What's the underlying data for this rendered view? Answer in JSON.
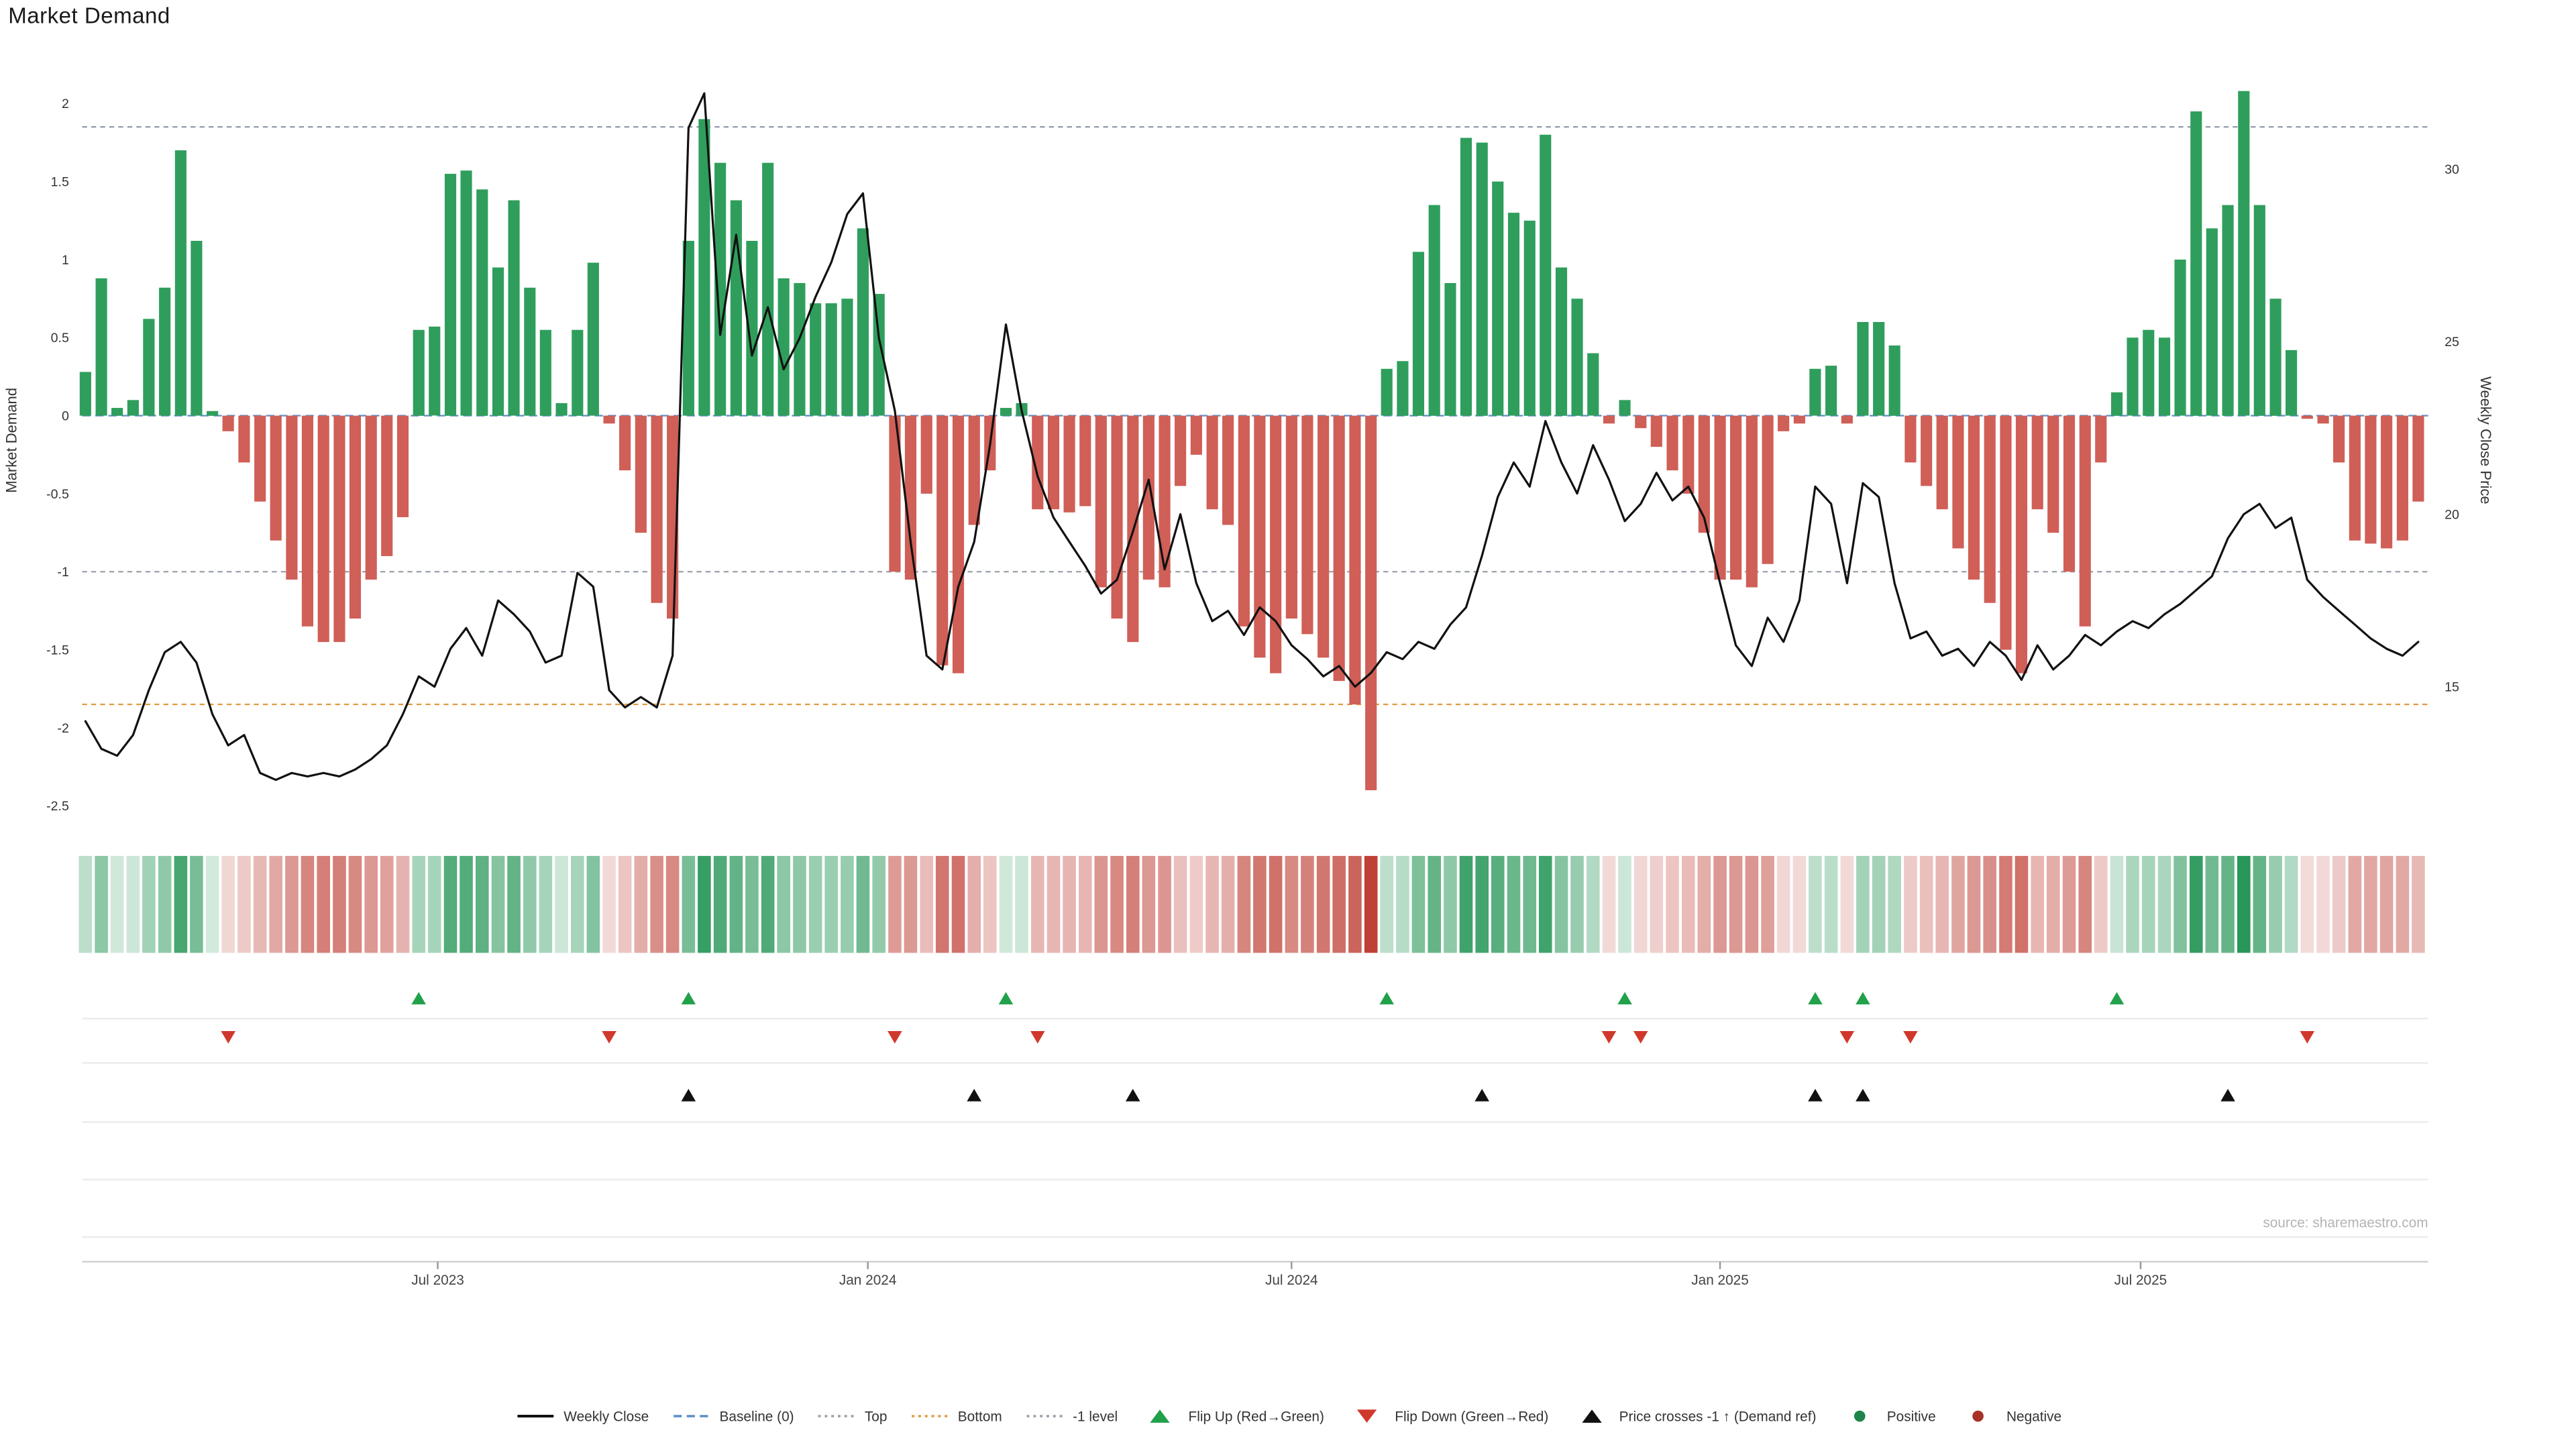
{
  "title": "Market Demand",
  "source": "source: sharemaestro.com",
  "axes": {
    "left_label": "Market Demand",
    "right_label": "Weekly Close Price",
    "left_ticks": [
      2,
      1.5,
      1,
      0.5,
      0,
      -0.5,
      -1,
      -1.5,
      -2,
      -2.5
    ],
    "right_ticks": [
      30,
      25,
      20,
      15
    ],
    "x_tick_labels": [
      "Jul 2023",
      "Jan 2024",
      "Jul 2024",
      "Jan 2025",
      "Jul 2025"
    ]
  },
  "colors": {
    "positive_bar": "#2f9e5c",
    "negative_bar": "#cf5f57",
    "heat_positive": "#0e8a44",
    "heat_negative": "#bf4036",
    "price_line": "#111111",
    "flip_up": "#22a14b",
    "flip_down": "#d1382c",
    "price_cross": "#111111",
    "positive_dot": "#1e8449",
    "negative_dot": "#a93226",
    "baseline": "#5b8fc9",
    "top_line": "#8b95a8",
    "bottom_line": "#e09a3e",
    "minus_one_line": "#9aa0a8"
  },
  "legend": [
    {
      "label": "Weekly Close",
      "symbol": "line",
      "color": "#111111"
    },
    {
      "label": "Baseline (0)",
      "symbol": "dash",
      "color": "#5b8fc9"
    },
    {
      "label": "Top",
      "symbol": "dots",
      "color": "#9aa0a8"
    },
    {
      "label": "Bottom",
      "symbol": "dots",
      "color": "#e09a3e"
    },
    {
      "label": "-1 level",
      "symbol": "dots",
      "color": "#9aa0a8"
    },
    {
      "label": "Flip Up (Red→Green)",
      "symbol": "triangle-up",
      "color": "#22a14b"
    },
    {
      "label": "Flip Down (Green→Red)",
      "symbol": "triangle-down",
      "color": "#d1382c"
    },
    {
      "label": "Price crosses -1 ↑ (Demand ref)",
      "symbol": "triangle-up",
      "color": "#111111"
    },
    {
      "label": "Positive",
      "symbol": "dot",
      "color": "#1e8449"
    },
    {
      "label": "Negative",
      "symbol": "dot",
      "color": "#a93226"
    }
  ],
  "chart_data": {
    "type": "bar+line",
    "frequency": "weekly",
    "title": "Market Demand",
    "left_axis_range": [
      -2.57,
      2.19
    ],
    "right_axis_range": [
      11.2,
      32.6
    ],
    "grid": false,
    "x_ticks": [
      {
        "label": "Jul 2023",
        "week": 22.2
      },
      {
        "label": "Jan 2024",
        "week": 49.3
      },
      {
        "label": "Jul 2024",
        "week": 76.0
      },
      {
        "label": "Jan 2025",
        "week": 103.0
      },
      {
        "label": "Jul 2025",
        "week": 129.5
      }
    ],
    "reference_lines": [
      {
        "name": "top",
        "label": "Top",
        "value": 1.85,
        "color": "#8b95a8",
        "dash": "3,2.5"
      },
      {
        "name": "baseline",
        "label": "Baseline (0)",
        "value": 0,
        "color": "#5b8fc9",
        "dash": "5,3"
      },
      {
        "name": "minus-one",
        "label": "-1 level",
        "value": -1,
        "color": "#9aa0a8",
        "dash": "3,2.5"
      },
      {
        "name": "bottom",
        "label": "Bottom",
        "value": -1.85,
        "color": "#e09a3e",
        "dash": "3,2.5"
      }
    ],
    "series": [
      {
        "name": "Market Demand",
        "type": "bar",
        "axis": "left",
        "values": [
          0.28,
          0.88,
          0.05,
          0.1,
          0.62,
          0.82,
          1.7,
          1.12,
          0.03,
          -0.1,
          -0.3,
          -0.55,
          -0.8,
          -1.05,
          -1.35,
          -1.45,
          -1.45,
          -1.3,
          -1.05,
          -0.9,
          -0.65,
          0.55,
          0.57,
          1.55,
          1.57,
          1.45,
          0.95,
          1.38,
          0.82,
          0.55,
          0.08,
          0.55,
          0.98,
          -0.05,
          -0.35,
          -0.75,
          -1.2,
          -1.3,
          1.12,
          1.9,
          1.62,
          1.38,
          1.12,
          1.62,
          0.88,
          0.85,
          0.72,
          0.72,
          0.75,
          1.2,
          0.78,
          -1.0,
          -1.05,
          -0.5,
          -1.6,
          -1.65,
          -0.7,
          -0.35,
          0.05,
          0.08,
          -0.6,
          -0.6,
          -0.62,
          -0.58,
          -1.1,
          -1.3,
          -1.45,
          -1.05,
          -1.1,
          -0.45,
          -0.25,
          -0.6,
          -0.7,
          -1.35,
          -1.55,
          -1.65,
          -1.3,
          -1.4,
          -1.55,
          -1.7,
          -1.85,
          -2.4,
          0.3,
          0.35,
          1.05,
          1.35,
          0.85,
          1.78,
          1.75,
          1.5,
          1.3,
          1.25,
          1.8,
          0.95,
          0.75,
          0.4,
          -0.05,
          0.1,
          -0.08,
          -0.2,
          -0.35,
          -0.5,
          -0.75,
          -1.05,
          -1.05,
          -1.1,
          -0.95,
          -0.1,
          -0.05,
          0.3,
          0.32,
          -0.05,
          0.6,
          0.6,
          0.45,
          -0.3,
          -0.45,
          -0.6,
          -0.85,
          -1.05,
          -1.2,
          -1.5,
          -1.65,
          -0.6,
          -0.75,
          -1.0,
          -1.35,
          -0.3,
          0.15,
          0.5,
          0.55,
          0.5,
          1.0,
          1.95,
          1.2,
          1.35,
          2.08,
          1.35,
          0.75,
          0.42,
          -0.02,
          -0.05,
          -0.3,
          -0.8,
          -0.82,
          -0.85,
          -0.8,
          -0.55
        ]
      },
      {
        "name": "Weekly Close",
        "type": "line",
        "axis": "right",
        "values": [
          14.0,
          13.2,
          13.0,
          13.6,
          14.9,
          16.0,
          16.3,
          15.7,
          14.2,
          13.3,
          13.6,
          12.5,
          12.3,
          12.5,
          12.4,
          12.5,
          12.4,
          12.6,
          12.9,
          13.3,
          14.2,
          15.3,
          15.0,
          16.1,
          16.7,
          15.9,
          17.5,
          17.1,
          16.6,
          15.7,
          15.9,
          18.3,
          17.9,
          14.9,
          14.4,
          14.7,
          14.4,
          15.9,
          31.2,
          32.2,
          25.2,
          28.1,
          24.6,
          26.0,
          24.2,
          25.1,
          26.3,
          27.3,
          28.7,
          29.3,
          25.1,
          23.0,
          19.2,
          15.9,
          15.5,
          17.9,
          19.2,
          22.0,
          25.5,
          23.0,
          21.1,
          19.9,
          19.2,
          18.5,
          17.7,
          18.1,
          19.5,
          21.0,
          18.4,
          20.0,
          18.0,
          16.9,
          17.2,
          16.5,
          17.3,
          16.9,
          16.2,
          15.8,
          15.3,
          15.6,
          15.0,
          15.4,
          16.0,
          15.8,
          16.3,
          16.1,
          16.8,
          17.3,
          18.8,
          20.5,
          21.5,
          20.8,
          22.7,
          21.5,
          20.6,
          22.0,
          21.0,
          19.8,
          20.3,
          21.2,
          20.4,
          20.8,
          19.9,
          18.0,
          16.2,
          15.6,
          17.0,
          16.3,
          17.5,
          20.8,
          20.3,
          18.0,
          20.9,
          20.5,
          18.0,
          16.4,
          16.6,
          15.9,
          16.1,
          15.6,
          16.3,
          15.9,
          15.2,
          16.2,
          15.5,
          15.9,
          16.5,
          16.2,
          16.6,
          16.9,
          16.7,
          17.1,
          17.4,
          17.8,
          18.2,
          19.3,
          20.0,
          20.3,
          19.6,
          19.9,
          18.1,
          17.6,
          17.2,
          16.8,
          16.4,
          16.1,
          15.9,
          16.3
        ]
      }
    ],
    "markers": [
      {
        "name": "flip_up",
        "label": "Flip Up (Red→Green)",
        "shape": "triangle-up",
        "color": "#22a14b",
        "weeks": [
          21,
          38,
          58,
          82,
          97,
          109,
          112,
          128
        ]
      },
      {
        "name": "flip_down",
        "label": "Flip Down (Green→Red)",
        "shape": "triangle-down",
        "color": "#d1382c",
        "weeks": [
          9,
          33,
          51,
          60,
          96,
          98,
          111,
          115,
          140
        ]
      },
      {
        "name": "price_cross",
        "label": "Price crosses -1 ↑ (Demand ref)",
        "shape": "triangle-up",
        "color": "#111111",
        "weeks": [
          38,
          56,
          66,
          88,
          109,
          112,
          135
        ]
      }
    ],
    "heatmap_from": "Market Demand"
  }
}
